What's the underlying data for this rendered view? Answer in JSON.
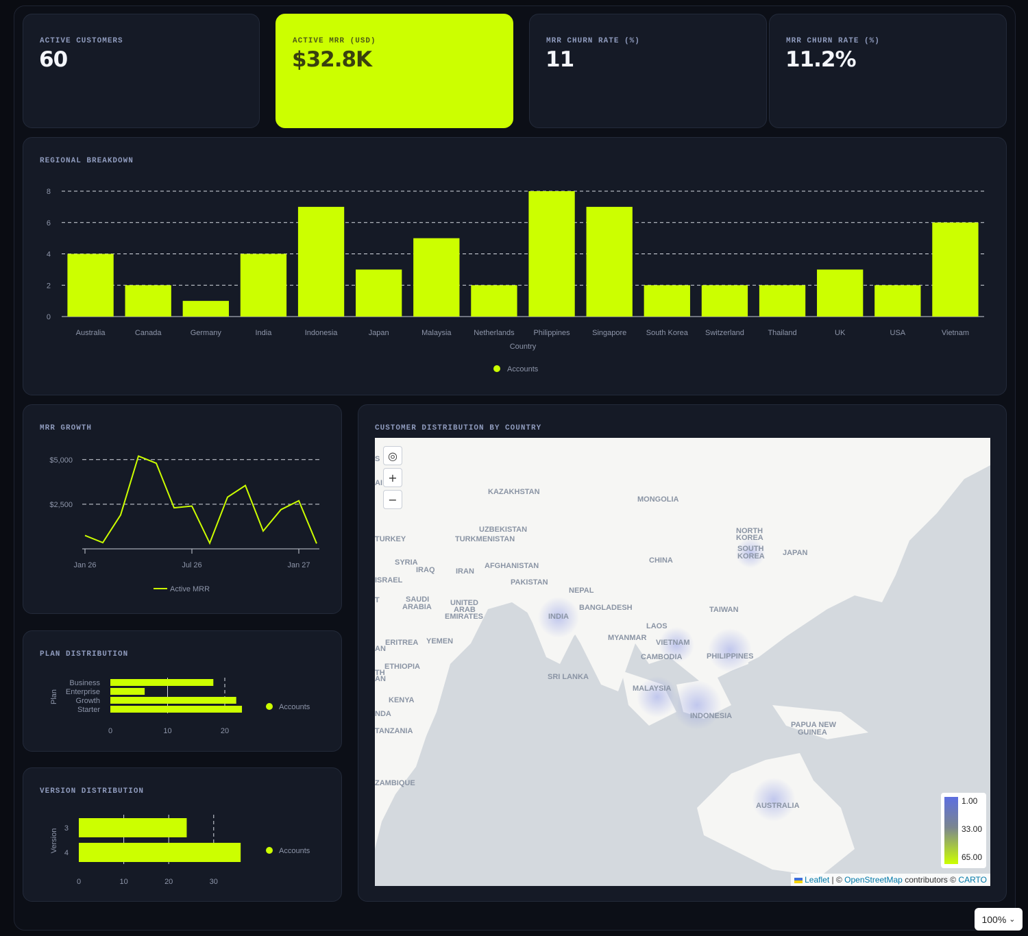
{
  "kpis": [
    {
      "label": "ACTIVE CUSTOMERS",
      "value": "60"
    },
    {
      "label": "ACTIVE MRR (USD)",
      "value": "$32.8K"
    },
    {
      "label": "MRR CHURN RATE (%)",
      "value": "11"
    },
    {
      "label": "MRR CHURN RATE (%)",
      "value": "11.2%"
    }
  ],
  "colors": {
    "accent": "#ccff00",
    "card": "#151a26",
    "background": "#0c0f17",
    "heat": "#5d6fe0"
  },
  "regional": {
    "title": "REGIONAL BREAKDOWN",
    "legend": "Accounts"
  },
  "mrr_growth": {
    "title": "MRR GROWTH",
    "legend": "Active MRR"
  },
  "plan": {
    "title": "PLAN DISTRIBUTION",
    "legend": "Accounts"
  },
  "version": {
    "title": "VERSION DISTRIBUTION",
    "legend": "Accounts"
  },
  "map": {
    "title": "CUSTOMER DISTRIBUTION BY COUNTRY",
    "labels": [
      "KAZAKHSTAN",
      "MONGOLIA",
      "UZBEKISTAN",
      "TURKMENISTAN",
      "TURKEY",
      "NORTH",
      "KOREA",
      "SOUTH",
      "KOREA",
      "JAPAN",
      "SYRIA",
      "IRAQ",
      "IRAN",
      "AFGHANISTAN",
      "CHINA",
      "ISRAEL",
      "PAKISTAN",
      "NEPAL",
      "SAUDI",
      "ARABIA",
      "UNITED",
      "ARAB",
      "EMIRATES",
      "BANGLADESH",
      "TAIWAN",
      "INDIA",
      "MYANMAR",
      "LAOS",
      "VIETNAM",
      "ERITREA",
      "YEMEN",
      "CAMBODIA",
      "PHILIPPINES",
      "ETHIOPIA",
      "SRI LANKA",
      "MALAYSIA",
      "KENYA",
      "INDONESIA",
      "PAPUA NEW",
      "GUINEA",
      "TANZANIA",
      "ZAMBIQUE",
      "AUSTRALIA",
      "S",
      "AI",
      "T",
      "AN",
      "TH",
      "AN",
      "NDA",
      "NEW"
    ],
    "scale": [
      "1.00",
      "33.00",
      "65.00"
    ],
    "controls": {
      "locate": "◎",
      "zoom_in": "+",
      "zoom_out": "−"
    },
    "attribution": {
      "leaflet": "Leaflet",
      "sep": "| ©",
      "osm": "OpenStreetMap",
      "contrib": "contributors ©",
      "carto": "CARTO"
    }
  },
  "zoom_select": "100%",
  "chart_data": [
    {
      "type": "bar",
      "title": "REGIONAL BREAKDOWN",
      "xlabel": "Country",
      "ylabel": "",
      "categories": [
        "Australia",
        "Canada",
        "Germany",
        "India",
        "Indonesia",
        "Japan",
        "Malaysia",
        "Netherlands",
        "Philippines",
        "Singapore",
        "South Korea",
        "Switzerland",
        "Thailand",
        "UK",
        "USA",
        "Vietnam"
      ],
      "series": [
        {
          "name": "Accounts",
          "values": [
            4,
            2,
            1,
            4,
            7,
            3,
            5,
            2,
            8,
            7,
            2,
            2,
            2,
            3,
            2,
            6
          ]
        }
      ],
      "yticks": [
        "0",
        "2",
        "4",
        "6",
        "8"
      ],
      "ylim": [
        0,
        8
      ],
      "grid": true,
      "legend": "bottom"
    },
    {
      "type": "line",
      "title": "MRR GROWTH",
      "x": [
        "2026-01",
        "2026-02",
        "2026-03",
        "2026-04",
        "2026-05",
        "2026-06",
        "2026-07",
        "2026-08",
        "2026-09",
        "2026-10",
        "2026-11",
        "2026-12",
        "2027-01",
        "2027-02"
      ],
      "series": [
        {
          "name": "Active MRR",
          "values": [
            750,
            350,
            1900,
            5200,
            4800,
            2300,
            2400,
            320,
            2900,
            3550,
            1000,
            2200,
            2700,
            300
          ]
        }
      ],
      "xticks": [
        "Jan 26",
        "Jul 26",
        "Jan 27"
      ],
      "yticks": [
        "$2,500",
        "$5,000"
      ],
      "ylim": [
        0,
        5300
      ],
      "grid": true,
      "legend": "bottom"
    },
    {
      "type": "bar",
      "title": "PLAN DISTRIBUTION",
      "orientation": "horizontal",
      "ylabel": "Plan",
      "categories": [
        "Business",
        "Enterprise",
        "Growth",
        "Starter"
      ],
      "series": [
        {
          "name": "Accounts",
          "values": [
            18,
            6,
            22,
            23
          ]
        }
      ],
      "xticks": [
        "0",
        "10",
        "20"
      ],
      "xlim": [
        0,
        25
      ],
      "legend": "right"
    },
    {
      "type": "bar",
      "title": "VERSION DISTRIBUTION",
      "orientation": "horizontal",
      "ylabel": "Version",
      "categories": [
        "3",
        "4"
      ],
      "series": [
        {
          "name": "Accounts",
          "values": [
            24,
            36
          ]
        }
      ],
      "xticks": [
        "0",
        "10",
        "20",
        "30"
      ],
      "xlim": [
        0,
        38
      ],
      "legend": "right"
    }
  ]
}
